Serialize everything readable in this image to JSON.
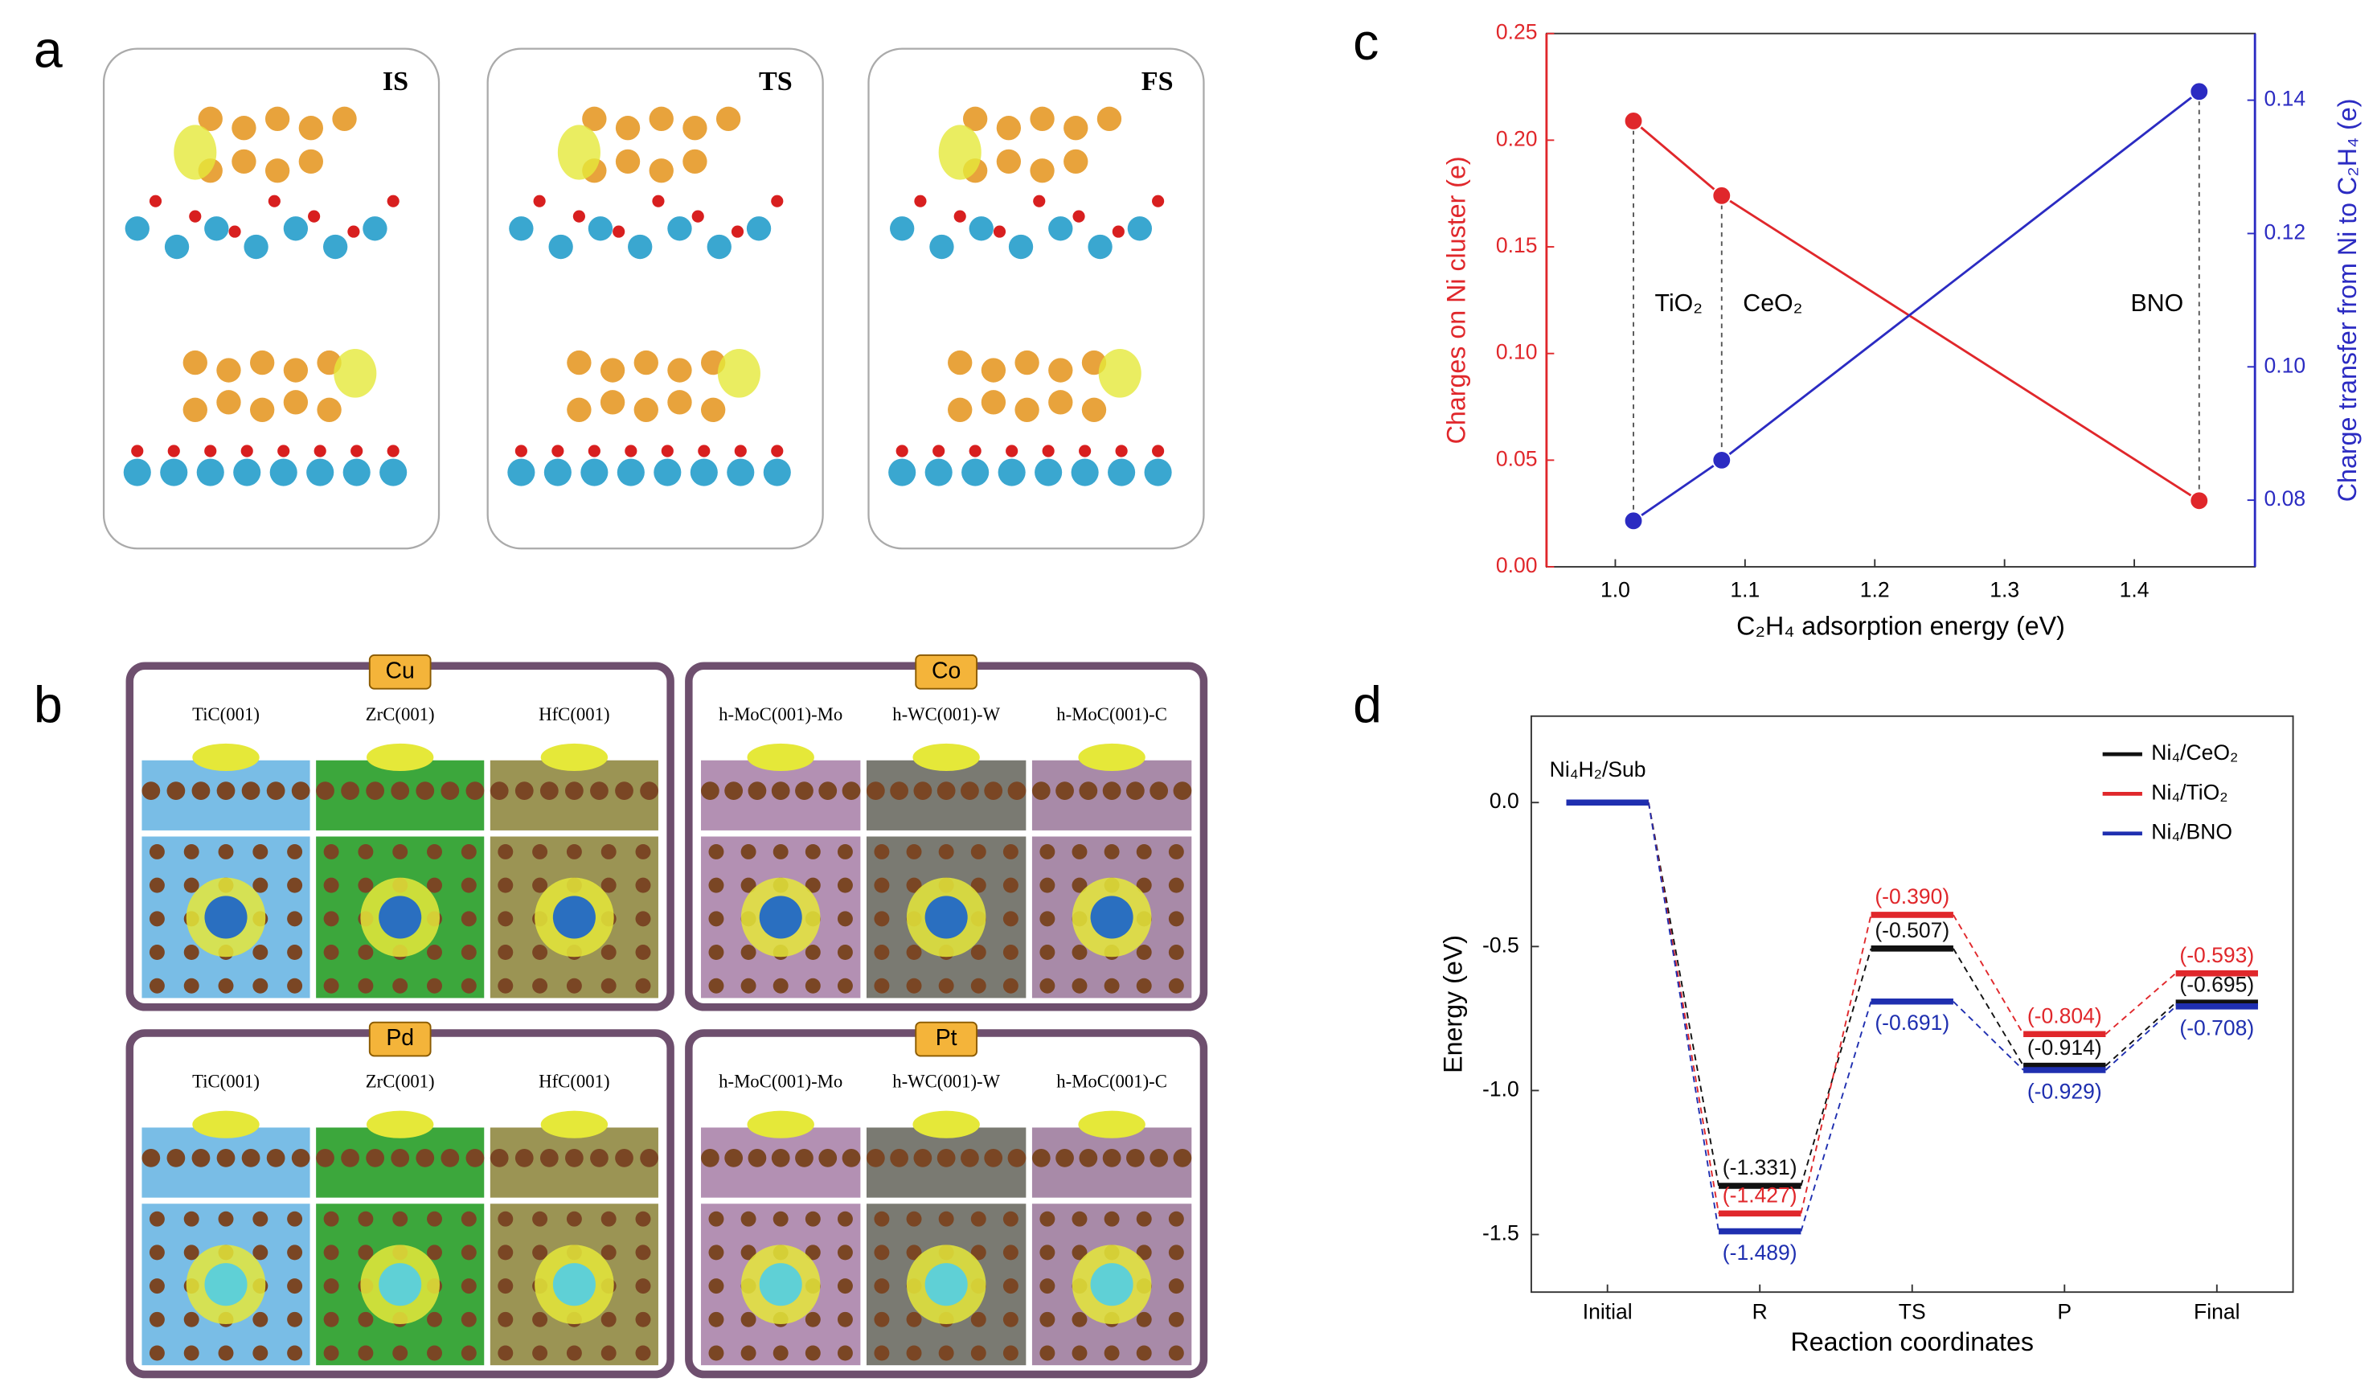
{
  "panels": {
    "a": {
      "label": "a",
      "states": [
        "IS",
        "TS",
        "FS"
      ]
    },
    "b": {
      "label": "b",
      "groups": [
        {
          "metal": "Cu",
          "substrates": [
            "TiC(001)",
            "ZrC(001)",
            "HfC(001)"
          ]
        },
        {
          "metal": "Co",
          "substrates": [
            "h-MoC(001)-Mo",
            "h-WC(001)-W",
            "h-MoC(001)-C"
          ]
        },
        {
          "metal": "Pd",
          "substrates": [
            "TiC(001)",
            "ZrC(001)",
            "HfC(001)"
          ]
        },
        {
          "metal": "Pt",
          "substrates": [
            "h-MoC(001)-Mo",
            "h-WC(001)-W",
            "h-MoC(001)-C"
          ]
        }
      ]
    }
  },
  "chart_data": [
    {
      "type": "scatter",
      "panel_label": "c",
      "xlabel": "C₂H₄ adsorption energy (eV)",
      "ylabel": "Charges on Ni cluster (e)",
      "y2label": "Charge transfer from Ni to C₂H₄ (e)",
      "point_labels": [
        "TiO₂",
        "CeO₂",
        "BNO"
      ],
      "xlim": [
        0.947,
        1.493
      ],
      "xticks": [
        {
          "value": 1.0,
          "label": "1.0"
        },
        {
          "value": 1.1,
          "label": "1.1"
        },
        {
          "value": 1.2,
          "label": "1.2"
        },
        {
          "value": 1.3,
          "label": "1.3"
        },
        {
          "value": 1.4,
          "label": "1.4"
        }
      ],
      "ylim": [
        0,
        0.25
      ],
      "yticks": [
        {
          "value": 0,
          "label": "0.00"
        },
        0.05,
        {
          "value": 0.1,
          "label": "0.10"
        },
        0.15,
        {
          "value": 0.2,
          "label": "0.20"
        },
        0.25
      ],
      "y2lim": [
        0.07,
        0.15
      ],
      "y2ticks": [
        0.08,
        {
          "value": 0.1,
          "label": "0.10"
        },
        0.12,
        0.14
      ],
      "series": [
        {
          "color": "#e0272b",
          "x": [
            1.014,
            1.082,
            1.45
          ],
          "values": [
            0.209,
            0.174,
            0.031
          ]
        },
        {
          "color": "#2b2bc2",
          "axis": "y2",
          "x": [
            1.014,
            1.082,
            1.45
          ],
          "values": [
            0.0769,
            0.086,
            0.1413
          ]
        }
      ]
    },
    {
      "type": "energy-levels",
      "panel_label": "d",
      "xlabel": "Reaction coordinates",
      "ylabel": "Energy (eV)",
      "annotation": "Ni₄H₂/Sub",
      "categories": [
        "Initial",
        "R",
        "TS",
        "P",
        "Final"
      ],
      "ylim": [
        -1.7,
        0.3
      ],
      "yticks": [
        -1.5,
        {
          "value": -1.0,
          "label": "-1.0"
        },
        -0.5,
        {
          "value": 0.0,
          "label": "0.0"
        }
      ],
      "legend": "top-right",
      "series": [
        {
          "name": "Ni₄/CeO₂",
          "color": "#111111",
          "values": [
            0,
            -1.331,
            -0.507,
            -0.914,
            -0.695
          ],
          "value_labels": [
            null,
            "(-1.331)",
            "(-0.507)",
            "(-0.914)",
            "(-0.695)"
          ]
        },
        {
          "name": "Ni₄/TiO₂",
          "color": "#e0272b",
          "values": [
            0,
            -1.427,
            -0.39,
            -0.804,
            -0.593
          ],
          "value_labels": [
            null,
            "(-1.427)",
            "(-0.390)",
            "(-0.804)",
            "(-0.593)"
          ]
        },
        {
          "name": "Ni₄/BNO",
          "color": "#1f2fb0",
          "values": [
            0,
            -1.489,
            -0.691,
            -0.929,
            -0.708
          ],
          "value_labels": [
            null,
            "(-1.489)",
            "(-0.691)",
            "(-0.929)",
            "(-0.708)"
          ]
        }
      ]
    }
  ]
}
